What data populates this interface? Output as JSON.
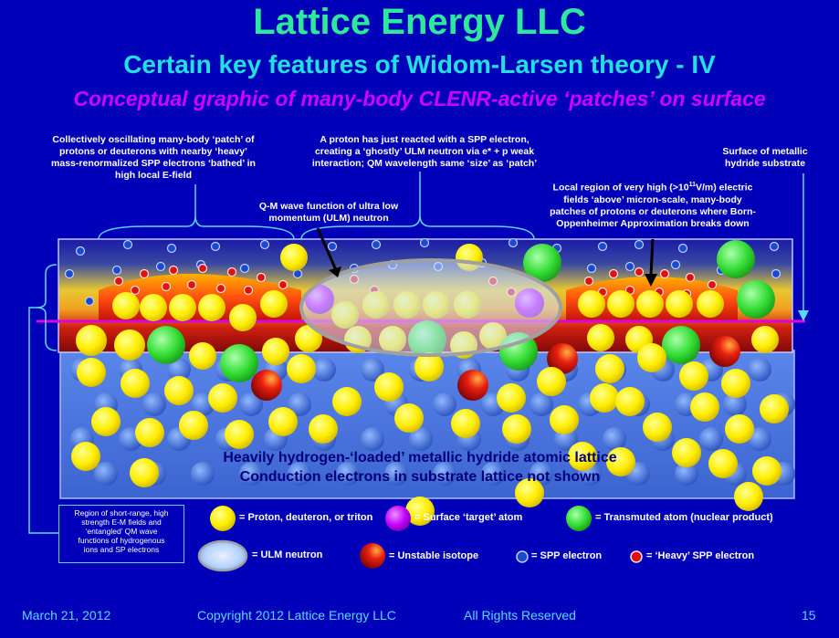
{
  "title": "Lattice Energy LLC",
  "subtitle": "Certain key features of Widom-Larsen theory - IV",
  "subtitle2": "Conceptual graphic of many-body CLENR-active ‘patches’ on surface",
  "annotations": {
    "patch": [
      "Collectively oscillating many-body ‘patch’ of",
      "protons or deuterons with nearby ‘heavy’",
      "mass-renormalized SPP electrons ‘bathed’ in",
      "high local E-field"
    ],
    "proton": [
      "A proton has just reacted with a SPP electron,",
      "creating a ‘ghostly’ ULM neutron via e* + p weak",
      "interaction; QM wavelength same ‘size’ as ‘patch’"
    ],
    "surface": [
      "Surface of metallic",
      "hydride substrate"
    ],
    "local_prefix": "Local region of very high (>10",
    "local_sup": "11",
    "local_suffix": "V/m) electric",
    "local_rest": [
      "fields ‘above’ micron-scale, many-body",
      "patches of protons or deuterons where Born-",
      "Oppenheimer Approximation breaks down"
    ],
    "qm": [
      "Q-M wave function of ultra low",
      "momentum (ULM) neutron"
    ]
  },
  "lattice_text": [
    "Heavily hydrogen-‘loaded’ metallic hydride atomic lattice",
    "Conduction electrons in substrate lattice not shown"
  ],
  "region_box": [
    "Region of short-range, high",
    "strength E-M fields and",
    "‘entangled’ QM wave",
    "functions of hydrogenous",
    "ions and SP electrons"
  ],
  "legend": {
    "proton": "= Proton, deuteron, or triton",
    "target": "= Surface ‘target’ atom",
    "transmuted": "= Transmuted atom (nuclear product)",
    "ulm": "= ULM neutron",
    "unstable": "= Unstable isotope",
    "spp": "= SPP electron",
    "heavy": "= ‘Heavy’ SPP electron"
  },
  "footer": {
    "date": "March 21, 2012",
    "copyright": "Copyright 2012 Lattice Energy LLC",
    "rights": "All Rights Reserved",
    "page": "15"
  },
  "colors": {
    "background": "#0000b8",
    "title": "#2ee89c",
    "subtitle": "#22e0e0",
    "subtitle2": "#d000ff",
    "proton": "#ffee00",
    "target": "#c000ff",
    "transmuted": "#33dd33",
    "surface_line": "#e000e0"
  }
}
